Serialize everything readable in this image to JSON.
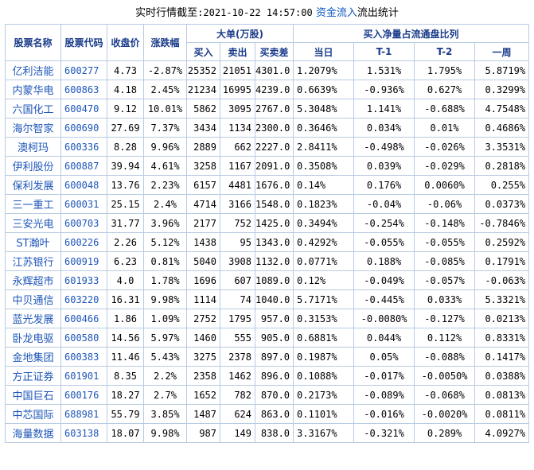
{
  "title": {
    "prefix": "实时行情截至",
    "time": ":2021-10-22 14:57:00",
    "link": "资金流入",
    "suffix": "流出统计"
  },
  "headers": {
    "name": "股票名称",
    "code": "股票代码",
    "close": "收盘价",
    "change": "涨跌幅",
    "big_order": "大单(万股)",
    "buy": "买入",
    "sell": "卖出",
    "diff": "买卖差",
    "ratio": "买入净量占流通盘比列",
    "today": "当日",
    "t1": "T-1",
    "t2": "T-2",
    "week": "一周"
  },
  "rows": [
    {
      "name": "亿利洁能",
      "code": "600277",
      "close": "4.73",
      "change": "-2.87%",
      "buy": "25352",
      "sell": "21051",
      "diff": "4301.0",
      "today": "1.2079%",
      "t1": "1.531%",
      "t2": "1.795%",
      "week": "5.8719%"
    },
    {
      "name": "内蒙华电",
      "code": "600863",
      "close": "4.18",
      "change": "2.45%",
      "buy": "21234",
      "sell": "16995",
      "diff": "4239.0",
      "today": "0.6639%",
      "t1": "-0.936%",
      "t2": "0.627%",
      "week": "0.3299%"
    },
    {
      "name": "六国化工",
      "code": "600470",
      "close": "9.12",
      "change": "10.01%",
      "buy": "5862",
      "sell": "3095",
      "diff": "2767.0",
      "today": "5.3048%",
      "t1": "1.141%",
      "t2": "-0.688%",
      "week": "4.7548%"
    },
    {
      "name": "海尔智家",
      "code": "600690",
      "close": "27.69",
      "change": "7.37%",
      "buy": "3434",
      "sell": "1134",
      "diff": "2300.0",
      "today": "0.3646%",
      "t1": "0.034%",
      "t2": "0.01%",
      "week": "0.4686%"
    },
    {
      "name": "澳柯玛",
      "code": "600336",
      "close": "8.28",
      "change": "9.96%",
      "buy": "2889",
      "sell": "662",
      "diff": "2227.0",
      "today": "2.8411%",
      "t1": "-0.498%",
      "t2": "-0.026%",
      "week": "3.3531%"
    },
    {
      "name": "伊利股份",
      "code": "600887",
      "close": "39.94",
      "change": "4.61%",
      "buy": "3258",
      "sell": "1167",
      "diff": "2091.0",
      "today": "0.3508%",
      "t1": "0.039%",
      "t2": "-0.029%",
      "week": "0.2818%"
    },
    {
      "name": "保利发展",
      "code": "600048",
      "close": "13.76",
      "change": "2.23%",
      "buy": "6157",
      "sell": "4481",
      "diff": "1676.0",
      "today": "0.14%",
      "t1": "0.176%",
      "t2": "0.0060%",
      "week": "0.255%"
    },
    {
      "name": "三一重工",
      "code": "600031",
      "close": "25.15",
      "change": "2.4%",
      "buy": "4714",
      "sell": "3166",
      "diff": "1548.0",
      "today": "0.1823%",
      "t1": "-0.04%",
      "t2": "-0.06%",
      "week": "0.0373%"
    },
    {
      "name": "三安光电",
      "code": "600703",
      "close": "31.77",
      "change": "3.96%",
      "buy": "2177",
      "sell": "752",
      "diff": "1425.0",
      "today": "0.3494%",
      "t1": "-0.254%",
      "t2": "-0.148%",
      "week": "-0.7846%"
    },
    {
      "name": "ST瀚叶",
      "code": "600226",
      "close": "2.26",
      "change": "5.12%",
      "buy": "1438",
      "sell": "95",
      "diff": "1343.0",
      "today": "0.4292%",
      "t1": "-0.055%",
      "t2": "-0.055%",
      "week": "0.2592%"
    },
    {
      "name": "江苏银行",
      "code": "600919",
      "close": "6.23",
      "change": "0.81%",
      "buy": "5040",
      "sell": "3908",
      "diff": "1132.0",
      "today": "0.0771%",
      "t1": "0.188%",
      "t2": "-0.085%",
      "week": "0.1791%"
    },
    {
      "name": "永辉超市",
      "code": "601933",
      "close": "4.0",
      "change": "1.78%",
      "buy": "1696",
      "sell": "607",
      "diff": "1089.0",
      "today": "0.12%",
      "t1": "-0.049%",
      "t2": "-0.057%",
      "week": "-0.063%"
    },
    {
      "name": "中贝通信",
      "code": "603220",
      "close": "16.31",
      "change": "9.98%",
      "buy": "1114",
      "sell": "74",
      "diff": "1040.0",
      "today": "5.7171%",
      "t1": "-0.445%",
      "t2": "0.033%",
      "week": "5.3321%"
    },
    {
      "name": "蓝光发展",
      "code": "600466",
      "close": "1.86",
      "change": "1.09%",
      "buy": "2752",
      "sell": "1795",
      "diff": "957.0",
      "today": "0.3153%",
      "t1": "-0.0080%",
      "t2": "-0.127%",
      "week": "0.0213%"
    },
    {
      "name": "卧龙电驱",
      "code": "600580",
      "close": "14.56",
      "change": "5.97%",
      "buy": "1460",
      "sell": "555",
      "diff": "905.0",
      "today": "0.6881%",
      "t1": "0.044%",
      "t2": "0.112%",
      "week": "0.8331%"
    },
    {
      "name": "金地集团",
      "code": "600383",
      "close": "11.46",
      "change": "5.43%",
      "buy": "3275",
      "sell": "2378",
      "diff": "897.0",
      "today": "0.1987%",
      "t1": "0.05%",
      "t2": "-0.088%",
      "week": "0.1417%"
    },
    {
      "name": "方正证券",
      "code": "601901",
      "close": "8.35",
      "change": "2.2%",
      "buy": "2358",
      "sell": "1462",
      "diff": "896.0",
      "today": "0.1088%",
      "t1": "-0.017%",
      "t2": "-0.0050%",
      "week": "0.0388%"
    },
    {
      "name": "中国巨石",
      "code": "600176",
      "close": "18.27",
      "change": "2.7%",
      "buy": "1652",
      "sell": "782",
      "diff": "870.0",
      "today": "0.2173%",
      "t1": "-0.089%",
      "t2": "-0.068%",
      "week": "0.0813%"
    },
    {
      "name": "中芯国际",
      "code": "688981",
      "close": "55.79",
      "change": "3.85%",
      "buy": "1487",
      "sell": "624",
      "diff": "863.0",
      "today": "0.1101%",
      "t1": "-0.016%",
      "t2": "-0.0020%",
      "week": "0.0811%"
    },
    {
      "name": "海量数据",
      "code": "603138",
      "close": "18.07",
      "change": "9.98%",
      "buy": "987",
      "sell": "149",
      "diff": "838.0",
      "today": "3.3167%",
      "t1": "-0.321%",
      "t2": "0.289%",
      "week": "4.0927%"
    }
  ]
}
